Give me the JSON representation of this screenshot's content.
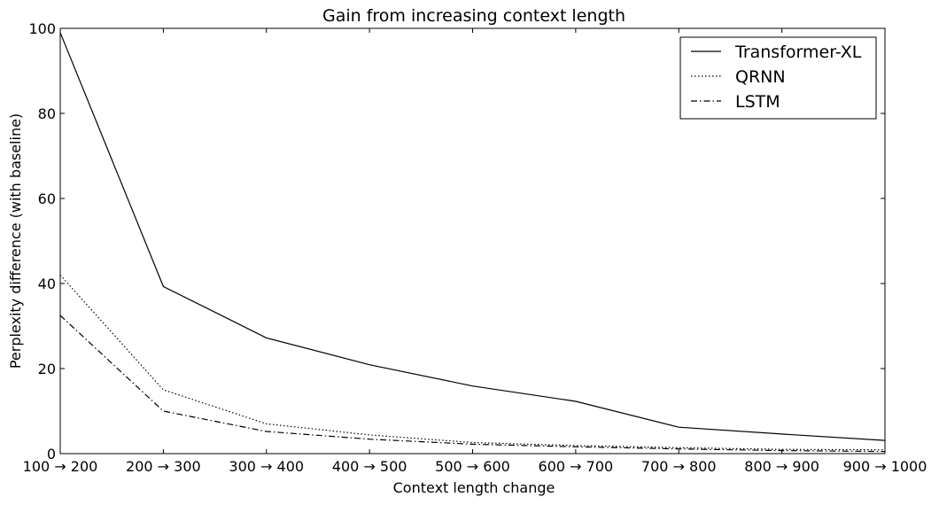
{
  "chart_data": {
    "type": "line",
    "title": "Gain from increasing context length",
    "xlabel": "Context length change",
    "ylabel": "Perplexity difference (with baseline)",
    "categories": [
      "100 → 200",
      "200 → 300",
      "300 → 400",
      "400 → 500",
      "500 → 600",
      "600 → 700",
      "700 → 800",
      "800 → 900",
      "900 → 1000"
    ],
    "ylim": [
      0,
      100
    ],
    "yticks": [
      0,
      20,
      40,
      60,
      80,
      100
    ],
    "grid": false,
    "legend_position": "top-right",
    "series": [
      {
        "name": "Transformer-XL",
        "style": "solid",
        "values": [
          99,
          39.3,
          27.2,
          20.9,
          15.9,
          12.3,
          6.2,
          4.6,
          3.1
        ]
      },
      {
        "name": "QRNN",
        "style": "dotted",
        "values": [
          42,
          15,
          7,
          4.4,
          2.6,
          1.9,
          1.4,
          1.0,
          0.9
        ]
      },
      {
        "name": "LSTM",
        "style": "dashdot",
        "values": [
          32.5,
          10,
          5.2,
          3.4,
          2.2,
          1.6,
          1.1,
          0.7,
          0.5
        ]
      }
    ]
  }
}
